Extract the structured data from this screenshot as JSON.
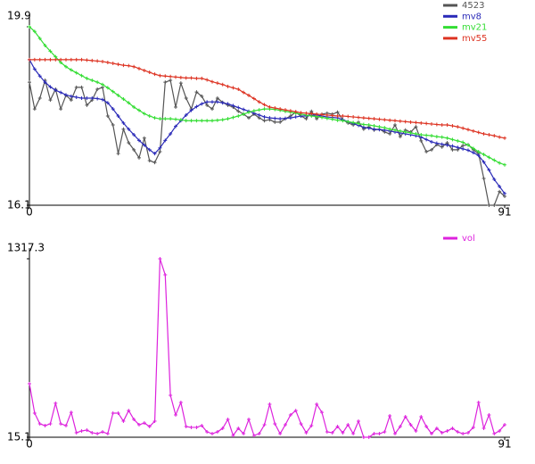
{
  "chart_data": [
    {
      "type": "line",
      "legend": "upper right",
      "x": [
        0,
        1,
        2,
        3,
        4,
        5,
        6,
        7,
        8,
        9,
        10,
        11,
        12,
        13,
        14,
        15,
        16,
        17,
        18,
        19,
        20,
        21,
        22,
        23,
        24,
        25,
        26,
        27,
        28,
        29,
        30,
        31,
        32,
        33,
        34,
        35,
        36,
        37,
        38,
        39,
        40,
        41,
        42,
        43,
        44,
        45,
        46,
        47,
        48,
        49,
        50,
        51,
        52,
        53,
        54,
        55,
        56,
        57,
        58,
        59,
        60,
        61,
        62,
        63,
        64,
        65,
        66,
        67,
        68,
        69,
        70,
        71,
        72,
        73,
        74,
        75,
        76,
        77,
        78,
        79,
        80,
        81,
        82,
        83,
        84,
        85,
        86,
        87,
        88,
        89,
        90,
        91
      ],
      "xlim": [
        0,
        91
      ],
      "xticks": [
        0,
        91
      ],
      "ylim": [
        16.1,
        19.9
      ],
      "yticks": [
        16.1,
        19.9
      ],
      "series": [
        {
          "name": "4523",
          "color": "#555555",
          "values": [
            18.72,
            18.15,
            18.38,
            18.76,
            18.34,
            18.57,
            18.15,
            18.44,
            18.34,
            18.61,
            18.61,
            18.23,
            18.34,
            18.57,
            18.61,
            18.0,
            17.81,
            17.2,
            17.72,
            17.43,
            17.28,
            17.11,
            17.53,
            17.05,
            17.01,
            17.24,
            18.72,
            18.76,
            18.19,
            18.7,
            18.38,
            18.15,
            18.51,
            18.42,
            18.23,
            18.15,
            18.38,
            18.29,
            18.23,
            18.19,
            18.1,
            18.04,
            17.96,
            18.04,
            17.96,
            17.9,
            17.92,
            17.87,
            17.87,
            17.94,
            18.0,
            18.08,
            18.0,
            17.94,
            18.1,
            17.94,
            18.04,
            18.06,
            18.04,
            18.08,
            17.92,
            17.85,
            17.81,
            17.87,
            17.72,
            17.77,
            17.7,
            17.72,
            17.66,
            17.62,
            17.81,
            17.56,
            17.7,
            17.66,
            17.77,
            17.47,
            17.24,
            17.28,
            17.39,
            17.34,
            17.43,
            17.28,
            17.28,
            17.37,
            17.39,
            17.28,
            17.2,
            16.67,
            16.1,
            16.1,
            16.39,
            16.29
          ]
        },
        {
          "name": "mv8",
          "color": "#2a2ab8",
          "values": [
            19.2,
            19.0,
            18.85,
            18.72,
            18.62,
            18.55,
            18.5,
            18.45,
            18.42,
            18.4,
            18.38,
            18.38,
            18.38,
            18.37,
            18.35,
            18.28,
            18.15,
            18.0,
            17.85,
            17.72,
            17.6,
            17.48,
            17.38,
            17.28,
            17.2,
            17.32,
            17.48,
            17.62,
            17.78,
            17.9,
            18.02,
            18.12,
            18.2,
            18.26,
            18.3,
            18.3,
            18.3,
            18.28,
            18.26,
            18.22,
            18.18,
            18.14,
            18.1,
            18.06,
            18.02,
            17.98,
            17.96,
            17.95,
            17.94,
            17.95,
            17.96,
            17.98,
            18.0,
            18.0,
            18.02,
            18.02,
            18.0,
            17.98,
            17.97,
            17.96,
            17.92,
            17.88,
            17.84,
            17.8,
            17.76,
            17.74,
            17.72,
            17.71,
            17.7,
            17.68,
            17.66,
            17.64,
            17.62,
            17.6,
            17.58,
            17.55,
            17.5,
            17.45,
            17.42,
            17.4,
            17.38,
            17.36,
            17.33,
            17.3,
            17.27,
            17.22,
            17.16,
            17.02,
            16.85,
            16.65,
            16.5,
            16.35
          ]
        },
        {
          "name": "mv21",
          "color": "#33dd33",
          "values": [
            19.9,
            19.8,
            19.65,
            19.5,
            19.38,
            19.26,
            19.14,
            19.05,
            18.98,
            18.92,
            18.86,
            18.8,
            18.76,
            18.72,
            18.67,
            18.6,
            18.52,
            18.44,
            18.36,
            18.28,
            18.19,
            18.12,
            18.05,
            18.0,
            17.96,
            17.94,
            17.94,
            17.94,
            17.93,
            17.92,
            17.9,
            17.9,
            17.9,
            17.9,
            17.9,
            17.9,
            17.91,
            17.92,
            17.94,
            17.97,
            18.0,
            18.04,
            18.08,
            18.11,
            18.13,
            18.15,
            18.15,
            18.14,
            18.12,
            18.1,
            18.08,
            18.06,
            18.04,
            18.02,
            18.0,
            17.99,
            17.97,
            17.95,
            17.93,
            17.91,
            17.9,
            17.88,
            17.86,
            17.84,
            17.82,
            17.81,
            17.79,
            17.77,
            17.75,
            17.72,
            17.7,
            17.68,
            17.66,
            17.64,
            17.62,
            17.6,
            17.59,
            17.58,
            17.56,
            17.55,
            17.53,
            17.5,
            17.47,
            17.44,
            17.38,
            17.31,
            17.24,
            17.18,
            17.12,
            17.06,
            17.0,
            16.96
          ]
        },
        {
          "name": "mv55",
          "color": "#dd3322",
          "values": [
            19.2,
            19.2,
            19.2,
            19.2,
            19.2,
            19.2,
            19.2,
            19.2,
            19.2,
            19.2,
            19.2,
            19.19,
            19.18,
            19.17,
            19.16,
            19.14,
            19.12,
            19.1,
            19.08,
            19.07,
            19.05,
            19.01,
            18.97,
            18.93,
            18.89,
            18.86,
            18.85,
            18.84,
            18.83,
            18.82,
            18.81,
            18.81,
            18.8,
            18.8,
            18.77,
            18.73,
            18.7,
            18.67,
            18.63,
            18.6,
            18.57,
            18.5,
            18.44,
            18.37,
            18.3,
            18.24,
            18.19,
            18.17,
            18.15,
            18.13,
            18.11,
            18.09,
            18.07,
            18.06,
            18.05,
            18.04,
            18.03,
            18.02,
            18.01,
            18.0,
            18.0,
            17.99,
            17.98,
            17.97,
            17.96,
            17.95,
            17.94,
            17.93,
            17.92,
            17.91,
            17.9,
            17.89,
            17.88,
            17.87,
            17.86,
            17.85,
            17.84,
            17.83,
            17.82,
            17.81,
            17.81,
            17.79,
            17.77,
            17.74,
            17.71,
            17.68,
            17.65,
            17.62,
            17.6,
            17.58,
            17.55,
            17.53
          ]
        }
      ]
    },
    {
      "type": "line",
      "legend": "upper right",
      "x": [
        0,
        1,
        2,
        3,
        4,
        5,
        6,
        7,
        8,
        9,
        10,
        11,
        12,
        13,
        14,
        15,
        16,
        17,
        18,
        19,
        20,
        21,
        22,
        23,
        24,
        25,
        26,
        27,
        28,
        29,
        30,
        31,
        32,
        33,
        34,
        35,
        36,
        37,
        38,
        39,
        40,
        41,
        42,
        43,
        44,
        45,
        46,
        47,
        48,
        49,
        50,
        51,
        52,
        53,
        54,
        55,
        56,
        57,
        58,
        59,
        60,
        61,
        62,
        63,
        64,
        65,
        66,
        67,
        68,
        69,
        70,
        71,
        72,
        73,
        74,
        75,
        76,
        77,
        78,
        79,
        80,
        81,
        82,
        83,
        84,
        85,
        86,
        87,
        88,
        89,
        90,
        91
      ],
      "xlim": [
        0,
        91
      ],
      "xticks": [
        0,
        91
      ],
      "ylim": [
        15.1,
        1317.3
      ],
      "yticks": [
        15.1,
        1317.3
      ],
      "series": [
        {
          "name": "vol",
          "color": "#dd22dd",
          "values": [
            406,
            191,
            113,
            100,
            113,
            263,
            113,
            100,
            197,
            48,
            61,
            67,
            48,
            41,
            54,
            41,
            191,
            191,
            132,
            210,
            145,
            106,
            119,
            93,
            132,
            1317.3,
            1200,
            321,
            178,
            269,
            93,
            87,
            87,
            100,
            54,
            41,
            54,
            80,
            145,
            28,
            80,
            41,
            145,
            28,
            41,
            106,
            256,
            113,
            41,
            106,
            178,
            210,
            113,
            48,
            100,
            256,
            197,
            54,
            48,
            93,
            48,
            106,
            41,
            132,
            15.1,
            15.1,
            41,
            41,
            54,
            171,
            41,
            93,
            165,
            106,
            61,
            165,
            93,
            41,
            80,
            48,
            61,
            80,
            54,
            41,
            48,
            87,
            269,
            80,
            178,
            41,
            61,
            106
          ]
        }
      ]
    }
  ]
}
